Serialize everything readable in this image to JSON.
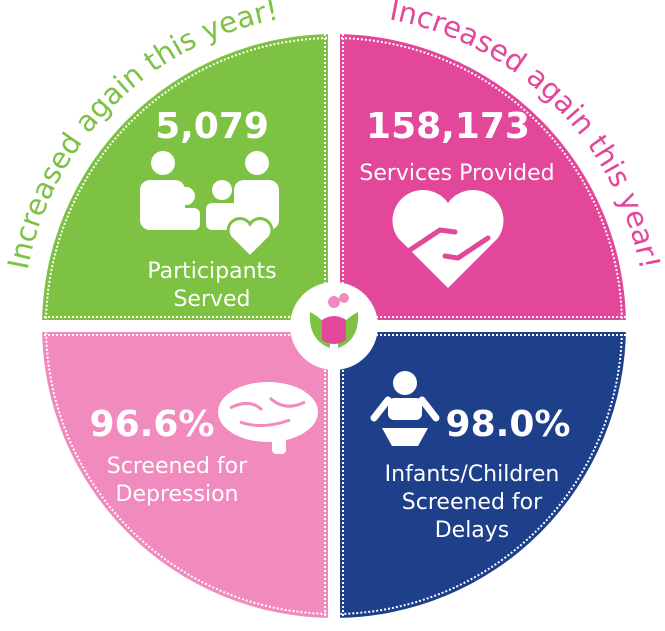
{
  "banners": [
    "Increased again this year!",
    "Increased again this year!"
  ],
  "quadrants": [
    {
      "value": "5,079",
      "label": [
        "Participants",
        "Served"
      ]
    },
    {
      "value": "158,173",
      "label": [
        "Services Provided"
      ]
    },
    {
      "value": "96.6%",
      "label": [
        "Screened for",
        "Depression"
      ]
    },
    {
      "value": "98.0%",
      "label": [
        "Infants/Children",
        "Screened for",
        "Delays"
      ]
    }
  ]
}
